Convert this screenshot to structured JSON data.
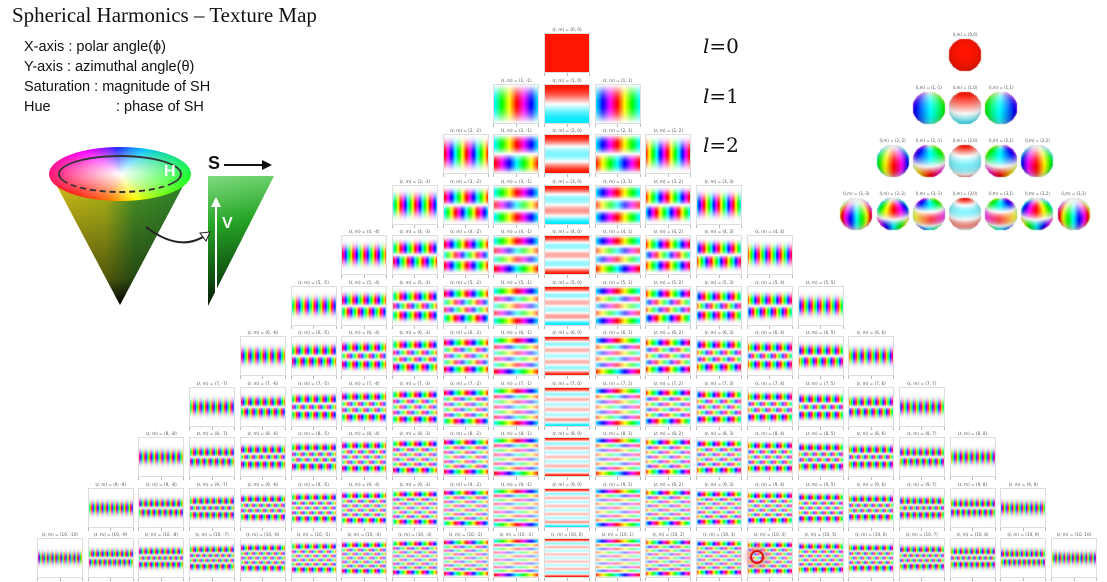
{
  "title": "Spherical Harmonics – Texture Map",
  "legend": [
    {
      "label": "X-axis",
      "desc": ": polar angle(ϕ)",
      "aligned": false
    },
    {
      "label": "Y-axis",
      "desc": ": azimuthal angle(θ)",
      "aligned": false
    },
    {
      "label": "Saturation",
      "desc": ": magnitude of SH",
      "aligned": false
    },
    {
      "label": "Hue",
      "desc": ": phase of SH",
      "aligned": true
    }
  ],
  "hsv_diagram": {
    "hue": "H",
    "saturation": "S",
    "value": "V"
  },
  "l_labels": [
    {
      "var": "l",
      "text": "=0"
    },
    {
      "var": "l",
      "text": "=1"
    },
    {
      "var": "l",
      "text": "=2"
    }
  ],
  "tile_label_template": "(ℓ, m) = ({l}, {m})",
  "sphere_label_template": "(l,m) = ({l},{m})",
  "texture_map": {
    "l_max": 10,
    "encoding": {
      "saturation": "magnitude",
      "hue": "phase"
    }
  },
  "spheres": {
    "l_max": 3
  },
  "colors": {
    "positive": "#ff2a1a",
    "negative": "#22e6f0",
    "cursor": "#e01010"
  },
  "cursor": {
    "l": 10,
    "m": 4
  }
}
